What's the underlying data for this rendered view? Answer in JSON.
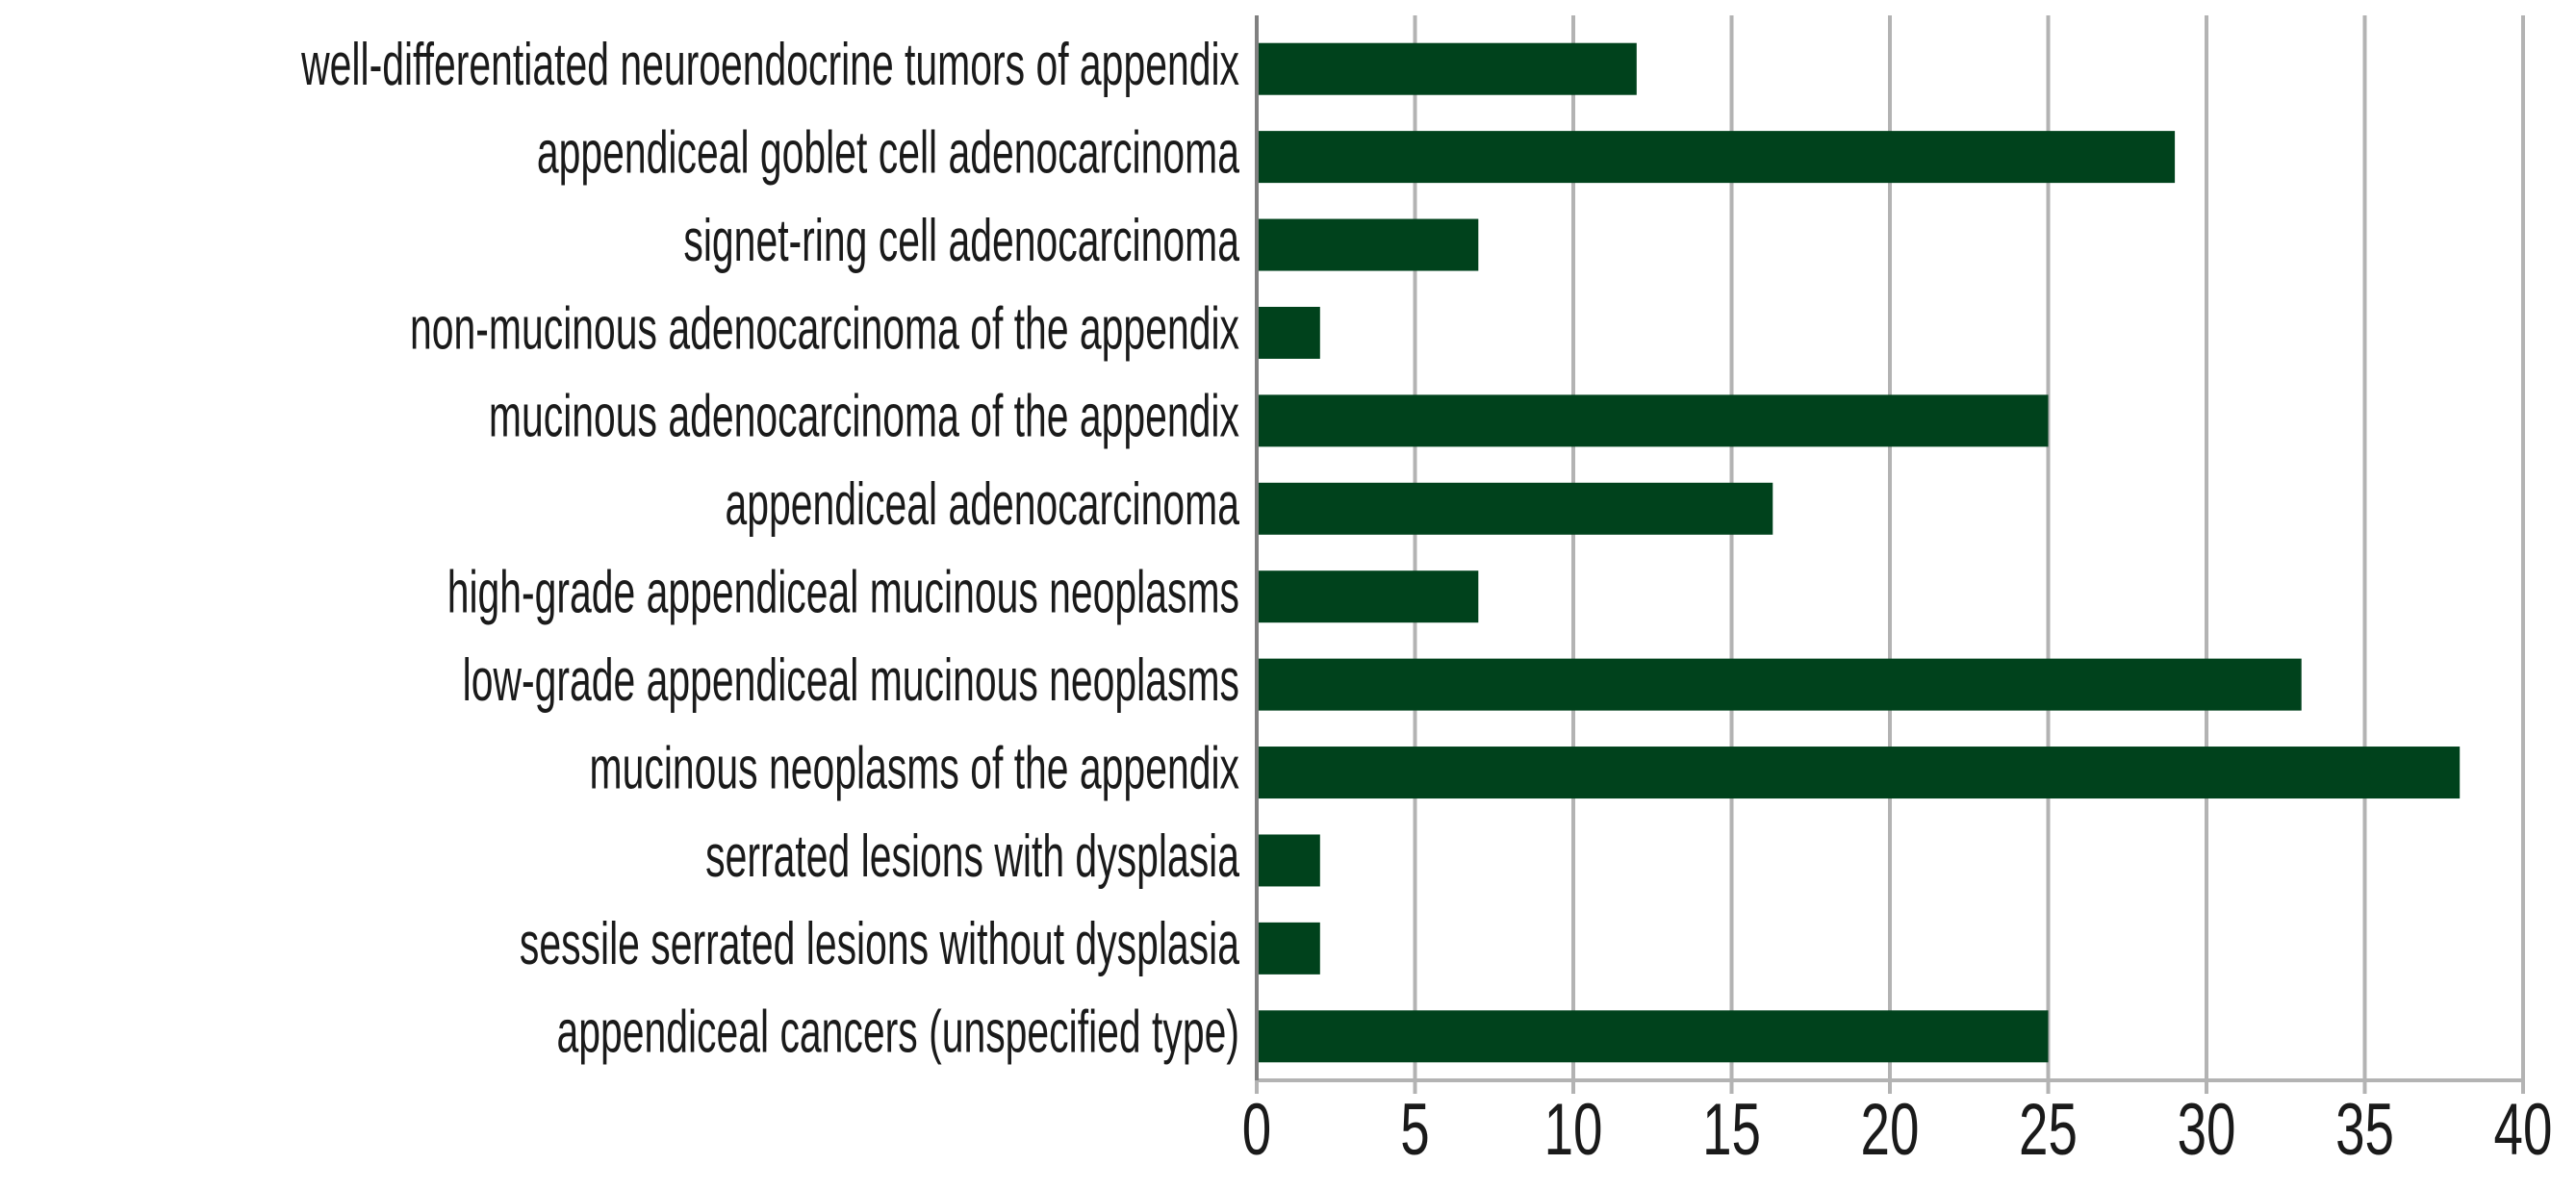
{
  "chart_data": {
    "type": "hbar",
    "categories": [
      "well-differentiated neuroendocrine tumors of appendix",
      "appendiceal goblet cell adenocarcinoma",
      "signet-ring cell adenocarcinoma",
      "non-mucinous adenocarcinoma of the appendix",
      "mucinous adenocarcinoma of the appendix",
      "appendiceal adenocarcinoma",
      "high-grade appendiceal mucinous neoplasms",
      "low-grade appendiceal mucinous neoplasms",
      "mucinous neoplasms of the appendix",
      "serrated lesions with dysplasia",
      "sessile serrated lesions without dysplasia",
      "appendiceal cancers (unspecified type)"
    ],
    "values": [
      12,
      29,
      7,
      2,
      25,
      16.3,
      7,
      33,
      38,
      2,
      2,
      25
    ],
    "color": "#00421c",
    "xlim": [
      0,
      40
    ],
    "xticks": [
      0,
      5,
      10,
      15,
      20,
      25,
      30,
      35,
      40
    ],
    "grid": true
  }
}
